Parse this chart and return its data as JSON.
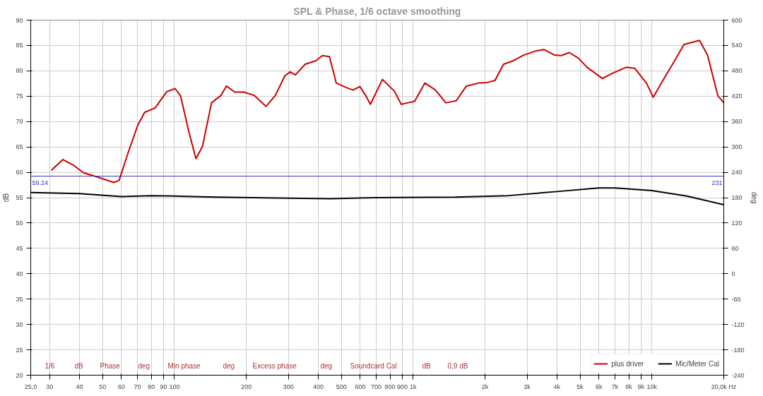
{
  "chart_data": {
    "type": "line",
    "title": "SPL & Phase, 1/6 octave smoothing",
    "ylabel": "dB",
    "y2label": "deg",
    "log": "x",
    "grid": true,
    "legend": "bottom",
    "xlim": [
      25,
      20000
    ],
    "ylim": [
      20,
      90
    ],
    "y2lim": [
      -240,
      600
    ],
    "xticks": [
      {
        "value": 25,
        "label": "25,0"
      },
      30,
      40,
      50,
      60,
      70,
      80,
      90,
      100,
      200,
      300,
      400,
      500,
      600,
      700,
      800,
      900,
      {
        "value": 1000,
        "label": "1k"
      },
      {
        "value": 2000,
        "label": "2k"
      },
      {
        "value": 3000,
        "label": "3k"
      },
      {
        "value": 4000,
        "label": "4k"
      },
      {
        "value": 5000,
        "label": "5k"
      },
      {
        "value": 6000,
        "label": "6k"
      },
      {
        "value": 7000,
        "label": "7k"
      },
      {
        "value": 8000,
        "label": "8k"
      },
      {
        "value": 9000,
        "label": "9k"
      },
      {
        "value": 10000,
        "label": "10k"
      },
      {
        "value": 20000,
        "label": "20,0k Hz"
      }
    ],
    "yticks": [
      20,
      25,
      30,
      35,
      40,
      45,
      50,
      55,
      60,
      65,
      70,
      75,
      80,
      85,
      90
    ],
    "y2ticks": [
      -240,
      -180,
      -120,
      -60,
      0,
      60,
      120,
      180,
      240,
      300,
      360,
      420,
      480,
      540,
      600
    ],
    "series": [
      {
        "name": "plus driver",
        "color": "#cc0000",
        "x": [
          30.5,
          34.1,
          38.0,
          41.6,
          47.3,
          55.7,
          58.6,
          63.9,
          70.2,
          75.0,
          83.0,
          92.8,
          100.6,
          106,
          115,
          123,
          131,
          143,
          157,
          165,
          179,
          195,
          215,
          242,
          264,
          290,
          305,
          321,
          353,
          391,
          417,
          446,
          476,
          525,
          560,
          598,
          631,
          662,
          743,
          834,
          891,
          951,
          1014,
          1120,
          1240,
          1370,
          1515,
          1670,
          1880,
          2040,
          2200,
          2390,
          2630,
          2900,
          3250,
          3530,
          3910,
          4170,
          4510,
          4920,
          5350,
          6200,
          6830,
          7790,
          8480,
          9480,
          10130,
          11180,
          12340,
          13620,
          15830,
          17100,
          18880,
          20000
        ],
        "values": [
          60.4,
          62.5,
          61.3,
          59.9,
          59.1,
          58.0,
          58.4,
          63.8,
          69.3,
          71.8,
          72.7,
          75.9,
          76.5,
          75.1,
          67.9,
          62.7,
          65.1,
          73.7,
          75.2,
          77.0,
          75.8,
          75.8,
          75.2,
          73.0,
          75.1,
          79.0,
          79.8,
          79.2,
          81.3,
          82.0,
          83.0,
          82.8,
          77.6,
          76.7,
          76.2,
          76.9,
          75.2,
          73.4,
          78.3,
          76.0,
          73.4,
          73.7,
          74.0,
          77.6,
          76.2,
          73.7,
          74.1,
          77.0,
          77.6,
          77.7,
          78.1,
          81.3,
          82.0,
          83.1,
          83.9,
          84.2,
          83.1,
          83.0,
          83.6,
          82.5,
          80.7,
          78.5,
          79.5,
          80.7,
          80.5,
          77.6,
          74.8,
          78.3,
          81.7,
          85.2,
          86.0,
          83.1,
          75.1,
          73.7
        ]
      },
      {
        "name": "Mic/Meter Cal",
        "color": "#000000",
        "x": [
          25,
          40,
          60,
          80,
          100,
          150,
          300,
          450,
          700,
          1500,
          2500,
          4000,
          6000,
          7000,
          10000,
          14000,
          20000
        ],
        "values": [
          56.0,
          55.8,
          55.2,
          55.4,
          55.3,
          55.1,
          54.9,
          54.8,
          55.0,
          55.1,
          55.4,
          56.2,
          56.9,
          56.9,
          56.4,
          55.3,
          53.6
        ]
      }
    ],
    "ref_lines": [
      {
        "axis": "y",
        "value": 59.24,
        "label": "59.24",
        "color": "#3333cc"
      }
    ],
    "annotations": [
      {
        "text": "231",
        "x": 20000,
        "y": 59.24
      },
      "1/6",
      "dB",
      "Phase",
      "deg",
      "Min phase",
      "deg",
      "Excess phase",
      "deg",
      "Soundcard Cal",
      "dB",
      "0,9 dB"
    ]
  }
}
